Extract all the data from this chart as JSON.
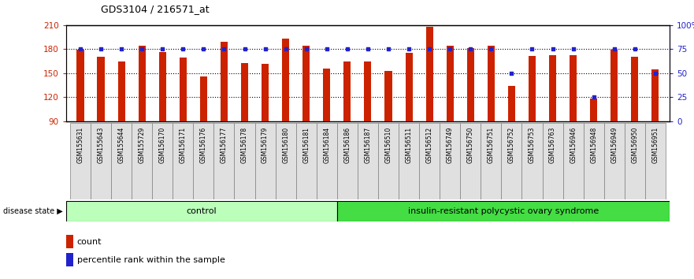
{
  "title": "GDS3104 / 216571_at",
  "samples": [
    "GSM155631",
    "GSM155643",
    "GSM155644",
    "GSM155729",
    "GSM156170",
    "GSM156171",
    "GSM156176",
    "GSM156177",
    "GSM156178",
    "GSM156179",
    "GSM156180",
    "GSM156181",
    "GSM156184",
    "GSM156186",
    "GSM156187",
    "GSM156510",
    "GSM156511",
    "GSM156512",
    "GSM156749",
    "GSM156750",
    "GSM156751",
    "GSM156752",
    "GSM156753",
    "GSM156763",
    "GSM156946",
    "GSM156948",
    "GSM156949",
    "GSM156950",
    "GSM156951"
  ],
  "counts": [
    179,
    171,
    165,
    184,
    176,
    170,
    146,
    189,
    163,
    162,
    193,
    184,
    156,
    165,
    165,
    153,
    175,
    208,
    184,
    181,
    184,
    134,
    172,
    173,
    173,
    118,
    179,
    171,
    155
  ],
  "percentile_ranks": [
    75,
    75,
    75,
    75,
    75,
    75,
    75,
    75,
    75,
    75,
    75,
    75,
    75,
    75,
    75,
    75,
    75,
    75,
    75,
    75,
    75,
    50,
    75,
    75,
    75,
    25,
    75,
    75,
    50
  ],
  "control_count": 13,
  "group_labels": [
    "control",
    "insulin-resistant polycystic ovary syndrome"
  ],
  "group_colors": [
    "#AAFFAA",
    "#33EE33"
  ],
  "ylim_left": [
    90,
    210
  ],
  "ylim_right": [
    0,
    100
  ],
  "yticks_left": [
    90,
    120,
    150,
    180,
    210
  ],
  "yticks_right": [
    0,
    25,
    50,
    75,
    100
  ],
  "ytick_labels_left": [
    "90",
    "120",
    "150",
    "180",
    "210"
  ],
  "ytick_labels_right": [
    "0",
    "25",
    "50",
    "75",
    "100%"
  ],
  "bar_color": "#CC2200",
  "dot_color": "#2222CC",
  "background_color": "#FFFFFF",
  "plot_bg_color": "#FFFFFF",
  "ylabel_left_color": "#CC2200",
  "ylabel_right_color": "#2222CC",
  "hgrid_values": [
    120,
    150,
    180
  ]
}
